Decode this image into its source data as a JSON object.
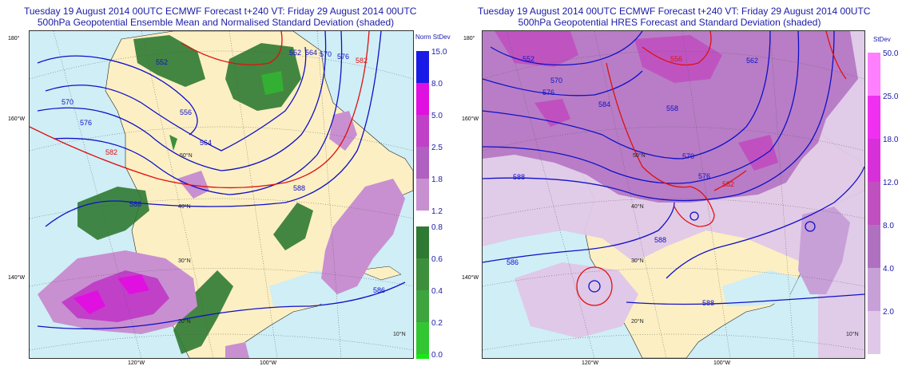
{
  "left_panel": {
    "title_line1": "Tuesday 19 August 2014 00UTC ECMWF Forecast t+240  VT: Friday 29 August 2014 00UTC",
    "title_line2": "500hPa Geopotential Ensemble Mean and Normalised Standard Deviation (shaded)",
    "colorbar_title": "Norm StDev",
    "colorbar_upper": [
      {
        "label": "15.0",
        "color": "#1a1ae6"
      },
      {
        "label": "8.0",
        "color": "#e010e0"
      },
      {
        "label": "5.0",
        "color": "#c040c8"
      },
      {
        "label": "2.5",
        "color": "#b060c0"
      },
      {
        "label": "1.8",
        "color": "#c890d0"
      },
      {
        "label": "1.2",
        "color": "#ffffff"
      }
    ],
    "colorbar_lower": [
      {
        "label": "0.8",
        "color": "#2f7a33"
      },
      {
        "label": "0.6",
        "color": "#3d8f3d"
      },
      {
        "label": "0.4",
        "color": "#3ea43e"
      },
      {
        "label": "0.2",
        "color": "#33c633"
      },
      {
        "label": "0.0",
        "color": "#18e818"
      }
    ],
    "contours": [
      "552",
      "556",
      "564",
      "570",
      "576",
      "582",
      "588",
      "552",
      "564",
      "570",
      "576",
      "582",
      "588",
      "586"
    ],
    "lat_labels": [
      "50°N",
      "40°N",
      "30°N",
      "20°N",
      "10°N"
    ],
    "lon_labels": [
      "180°",
      "160°W",
      "140°W",
      "120°W",
      "100°W"
    ]
  },
  "right_panel": {
    "title_line1": "Tuesday 19 August 2014 00UTC ECMWF Forecast t+240  VT: Friday 29 August 2014 00UTC",
    "title_line2": "500hPa Geopotential HRES Forecast and Standard Deviation (shaded)",
    "colorbar_title": "StDev",
    "colorbar": [
      {
        "label": "50.0",
        "color": "#ff80ff"
      },
      {
        "label": "25.0",
        "color": "#f030f0"
      },
      {
        "label": "18.0",
        "color": "#d830d8"
      },
      {
        "label": "12.0",
        "color": "#c050c0"
      },
      {
        "label": "8.0",
        "color": "#b070c0"
      },
      {
        "label": "4.0",
        "color": "#c8a0d8"
      },
      {
        "label": "2.0",
        "color": "#e0c8e8"
      }
    ],
    "contours": [
      "552",
      "556",
      "570",
      "576",
      "584",
      "558",
      "562",
      "570",
      "576",
      "582",
      "588",
      "586",
      "588",
      "588"
    ],
    "lat_labels": [
      "50°N",
      "40°N",
      "30°N",
      "20°N",
      "10°N"
    ],
    "lon_labels": [
      "180°",
      "160°W",
      "140°W",
      "120°W",
      "100°W"
    ]
  },
  "colors": {
    "land": "#fcefc3",
    "sea": "#cfeef6",
    "contour_blue": "#1010c8",
    "contour_red": "#e01010",
    "title": "#1a1aa8"
  }
}
